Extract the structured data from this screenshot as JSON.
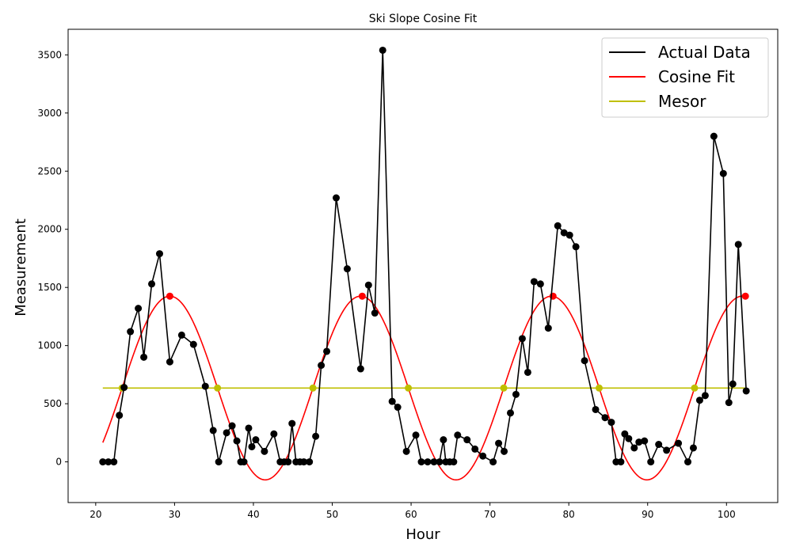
{
  "chart_data": {
    "type": "line",
    "title": "Ski Slope Cosine Fit",
    "xlabel": "Hour",
    "ylabel": "Measurement",
    "xlim": [
      16.5,
      106.5
    ],
    "ylim": [
      -350,
      3720
    ],
    "xticks": [
      20,
      30,
      40,
      50,
      60,
      70,
      80,
      90,
      100
    ],
    "yticks": [
      0,
      500,
      1000,
      1500,
      2000,
      2500,
      3000,
      3500
    ],
    "legend_position": "top-right",
    "grid": false,
    "colors": {
      "actual": "#000000",
      "fit": "#ff0000",
      "mesor": "#bfbf00"
    },
    "mesor": 635,
    "series": [
      {
        "name": "Actual Data",
        "x": [
          20.9,
          21.6,
          22.3,
          23.0,
          23.6,
          24.4,
          25.4,
          26.1,
          27.1,
          28.1,
          29.4,
          30.9,
          32.4,
          33.9,
          34.9,
          35.6,
          36.6,
          37.3,
          37.9,
          38.4,
          38.8,
          39.4,
          39.8,
          40.3,
          41.4,
          42.6,
          43.4,
          43.9,
          44.4,
          44.9,
          45.4,
          45.9,
          46.4,
          47.1,
          47.9,
          48.6,
          49.3,
          50.5,
          51.9,
          53.6,
          54.6,
          55.4,
          56.4,
          57.6,
          58.3,
          59.4,
          60.6,
          61.3,
          62.1,
          62.9,
          63.6,
          64.1,
          64.4,
          64.9,
          65.4,
          65.9,
          67.1,
          68.1,
          69.1,
          70.4,
          71.1,
          71.8,
          72.6,
          73.3,
          74.1,
          74.8,
          75.6,
          76.4,
          77.4,
          78.6,
          79.4,
          80.1,
          80.9,
          82.0,
          83.4,
          84.6,
          85.4,
          86.0,
          86.6,
          87.1,
          87.6,
          88.3,
          88.9,
          89.6,
          90.4,
          91.4,
          92.4,
          93.9,
          95.1,
          95.8,
          96.6,
          97.3,
          98.4,
          99.6,
          100.3,
          100.8,
          101.5,
          102.5
        ],
        "y": [
          0,
          0,
          0,
          400,
          640,
          1120,
          1320,
          900,
          1530,
          1790,
          860,
          1090,
          1010,
          650,
          270,
          0,
          250,
          310,
          180,
          0,
          0,
          290,
          130,
          190,
          90,
          240,
          0,
          0,
          0,
          330,
          0,
          0,
          0,
          0,
          220,
          830,
          950,
          2270,
          1660,
          800,
          1520,
          1280,
          3540,
          520,
          470,
          90,
          230,
          0,
          0,
          0,
          0,
          190,
          0,
          0,
          0,
          230,
          190,
          110,
          50,
          0,
          160,
          90,
          420,
          580,
          1060,
          770,
          1550,
          1530,
          1150,
          2030,
          1970,
          1950,
          1850,
          870,
          450,
          380,
          340,
          0,
          0,
          240,
          200,
          120,
          170,
          180,
          0,
          150,
          100,
          160,
          0,
          120,
          530,
          570,
          2800,
          2480,
          510,
          670,
          1870,
          610
        ]
      },
      {
        "name": "Cosine Fit",
        "amplitude": 790,
        "period": 24.2,
        "acrophase_hours": [
          29.4,
          53.8,
          78.0,
          102.4
        ]
      },
      {
        "name": "Mesor",
        "value": 635
      }
    ]
  }
}
